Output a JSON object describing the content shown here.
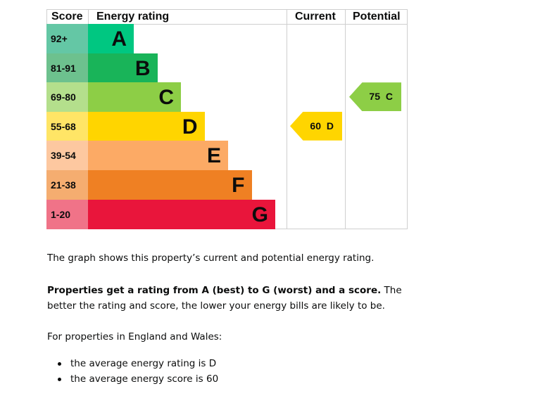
{
  "chart_data": {
    "type": "bar",
    "headers": {
      "score": "Score",
      "rating": "Energy rating",
      "current": "Current",
      "potential": "Potential"
    },
    "bands": [
      {
        "letter": "A",
        "range": "92+",
        "color": "#00c781",
        "score_bg": "#64c7a5"
      },
      {
        "letter": "B",
        "range": "81-91",
        "color": "#19b459",
        "score_bg": "#6dc18e"
      },
      {
        "letter": "C",
        "range": "69-80",
        "color": "#8dce46",
        "score_bg": "#b4df8c"
      },
      {
        "letter": "D",
        "range": "55-68",
        "color": "#ffd500",
        "score_bg": "#ffe566"
      },
      {
        "letter": "E",
        "range": "39-54",
        "color": "#fcaa65",
        "score_bg": "#fdc8a0"
      },
      {
        "letter": "F",
        "range": "21-38",
        "color": "#ef8023",
        "score_bg": "#f5ad70"
      },
      {
        "letter": "G",
        "range": "1-20",
        "color": "#e9153b",
        "score_bg": "#f07388"
      }
    ],
    "current": {
      "score": 60,
      "letter": "D",
      "label": "60 D",
      "color": "#ffd500"
    },
    "potential": {
      "score": 75,
      "letter": "C",
      "label": "75 C",
      "color": "#8dce46"
    }
  },
  "text": {
    "p1": "The graph shows this property’s current and potential energy rating.",
    "p2_bold": "Properties get a rating from A (best) to G (worst) and a score.",
    "p2_rest": " The better the rating and score, the lower your energy bills are likely to be.",
    "p3": "For properties in England and Wales:",
    "bullets": [
      "the average energy rating is D",
      "the average energy score is 60"
    ]
  }
}
